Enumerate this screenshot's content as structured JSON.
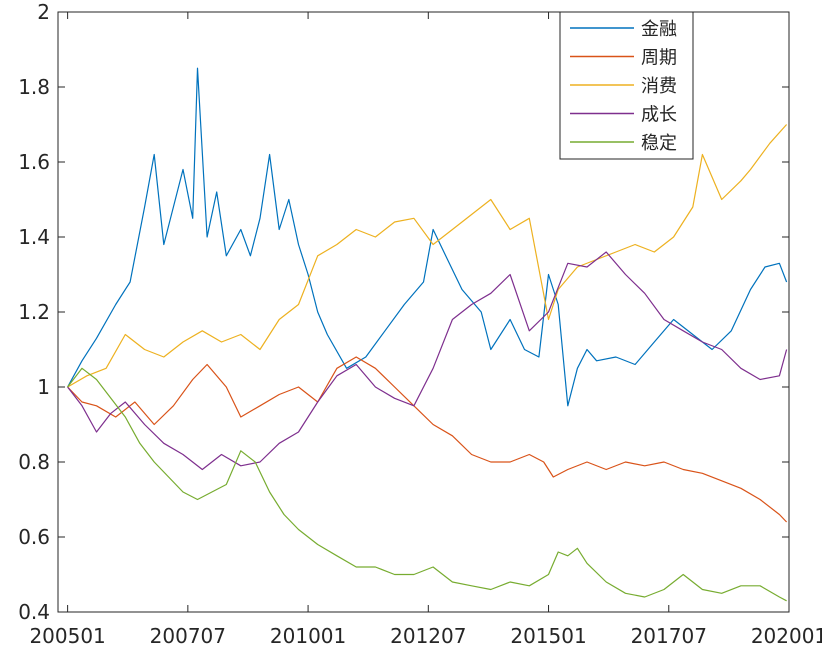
{
  "chart_data": {
    "type": "line",
    "title": "",
    "xlabel": "",
    "ylabel": "",
    "x_ticks": [
      "200501",
      "200707",
      "201001",
      "201207",
      "201501",
      "201707",
      "202001"
    ],
    "x_tick_positions": [
      0,
      2.5,
      5,
      7.5,
      10,
      12.5,
      15
    ],
    "xlim": [
      -0.2,
      15
    ],
    "ylim": [
      0.4,
      2.0
    ],
    "y_ticks": [
      "0.4",
      "0.6",
      "0.8",
      "1",
      "1.2",
      "1.4",
      "1.6",
      "1.8",
      "2"
    ],
    "y_tick_values": [
      0.4,
      0.6,
      0.8,
      1.0,
      1.2,
      1.4,
      1.6,
      1.8,
      2.0
    ],
    "grid": false,
    "legend_position": "top-right",
    "series": [
      {
        "name": "金融",
        "color": "#0072BD",
        "x": [
          0,
          0.3,
          0.6,
          1.0,
          1.3,
          1.6,
          1.8,
          2.0,
          2.2,
          2.4,
          2.6,
          2.7,
          2.9,
          3.1,
          3.3,
          3.6,
          3.8,
          4.0,
          4.2,
          4.4,
          4.6,
          4.8,
          5.0,
          5.2,
          5.4,
          5.8,
          6.2,
          6.6,
          7.0,
          7.4,
          7.6,
          7.9,
          8.2,
          8.6,
          8.8,
          9.2,
          9.5,
          9.8,
          10.0,
          10.2,
          10.4,
          10.6,
          10.8,
          11.0,
          11.4,
          11.8,
          12.2,
          12.6,
          13.0,
          13.4,
          13.8,
          14.2,
          14.5,
          14.8,
          14.95
        ],
        "y": [
          1.0,
          1.07,
          1.13,
          1.22,
          1.28,
          1.48,
          1.62,
          1.38,
          1.48,
          1.58,
          1.45,
          1.85,
          1.4,
          1.52,
          1.35,
          1.42,
          1.35,
          1.45,
          1.62,
          1.42,
          1.5,
          1.38,
          1.3,
          1.2,
          1.14,
          1.05,
          1.08,
          1.15,
          1.22,
          1.28,
          1.42,
          1.34,
          1.26,
          1.2,
          1.1,
          1.18,
          1.1,
          1.08,
          1.3,
          1.22,
          0.95,
          1.05,
          1.1,
          1.07,
          1.08,
          1.06,
          1.12,
          1.18,
          1.14,
          1.1,
          1.15,
          1.26,
          1.32,
          1.33,
          1.28
        ]
      },
      {
        "name": "周期",
        "color": "#D95319",
        "x": [
          0,
          0.3,
          0.6,
          1.0,
          1.4,
          1.8,
          2.2,
          2.6,
          2.9,
          3.3,
          3.6,
          4.0,
          4.4,
          4.8,
          5.2,
          5.6,
          6.0,
          6.4,
          6.8,
          7.2,
          7.6,
          8.0,
          8.4,
          8.8,
          9.2,
          9.6,
          9.9,
          10.1,
          10.4,
          10.8,
          11.2,
          11.6,
          12.0,
          12.4,
          12.8,
          13.2,
          13.6,
          14.0,
          14.4,
          14.8,
          14.95
        ],
        "y": [
          1.0,
          0.96,
          0.95,
          0.92,
          0.96,
          0.9,
          0.95,
          1.02,
          1.06,
          1.0,
          0.92,
          0.95,
          0.98,
          1.0,
          0.96,
          1.05,
          1.08,
          1.05,
          1.0,
          0.95,
          0.9,
          0.87,
          0.82,
          0.8,
          0.8,
          0.82,
          0.8,
          0.76,
          0.78,
          0.8,
          0.78,
          0.8,
          0.79,
          0.8,
          0.78,
          0.77,
          0.75,
          0.73,
          0.7,
          0.66,
          0.64
        ]
      },
      {
        "name": "消费",
        "color": "#EDB120",
        "x": [
          0,
          0.4,
          0.8,
          1.2,
          1.6,
          2.0,
          2.4,
          2.8,
          3.2,
          3.6,
          4.0,
          4.4,
          4.8,
          5.2,
          5.6,
          6.0,
          6.4,
          6.8,
          7.2,
          7.6,
          8.0,
          8.4,
          8.8,
          9.2,
          9.6,
          10.0,
          10.2,
          10.6,
          11.0,
          11.4,
          11.8,
          12.2,
          12.6,
          13.0,
          13.2,
          13.6,
          14.0,
          14.2,
          14.6,
          14.95
        ],
        "y": [
          1.0,
          1.03,
          1.05,
          1.14,
          1.1,
          1.08,
          1.12,
          1.15,
          1.12,
          1.14,
          1.1,
          1.18,
          1.22,
          1.35,
          1.38,
          1.42,
          1.4,
          1.44,
          1.45,
          1.38,
          1.42,
          1.46,
          1.5,
          1.42,
          1.45,
          1.18,
          1.26,
          1.32,
          1.34,
          1.36,
          1.38,
          1.36,
          1.4,
          1.48,
          1.62,
          1.5,
          1.55,
          1.58,
          1.65,
          1.7
        ]
      },
      {
        "name": "成长",
        "color": "#7E2F8E",
        "x": [
          0,
          0.3,
          0.6,
          0.9,
          1.2,
          1.6,
          2.0,
          2.4,
          2.8,
          3.2,
          3.6,
          4.0,
          4.4,
          4.8,
          5.2,
          5.6,
          6.0,
          6.4,
          6.8,
          7.2,
          7.6,
          8.0,
          8.4,
          8.8,
          9.2,
          9.6,
          10.0,
          10.4,
          10.8,
          11.2,
          11.6,
          12.0,
          12.4,
          12.8,
          13.2,
          13.6,
          14.0,
          14.4,
          14.8,
          14.95
        ],
        "y": [
          1.0,
          0.95,
          0.88,
          0.93,
          0.96,
          0.9,
          0.85,
          0.82,
          0.78,
          0.82,
          0.79,
          0.8,
          0.85,
          0.88,
          0.96,
          1.03,
          1.06,
          1.0,
          0.97,
          0.95,
          1.05,
          1.18,
          1.22,
          1.25,
          1.3,
          1.15,
          1.2,
          1.33,
          1.32,
          1.36,
          1.3,
          1.25,
          1.18,
          1.15,
          1.12,
          1.1,
          1.05,
          1.02,
          1.03,
          1.1
        ]
      },
      {
        "name": "稳定",
        "color": "#77AC30",
        "x": [
          0,
          0.3,
          0.6,
          0.9,
          1.2,
          1.5,
          1.8,
          2.1,
          2.4,
          2.7,
          3.0,
          3.3,
          3.6,
          3.9,
          4.2,
          4.5,
          4.8,
          5.2,
          5.6,
          6.0,
          6.4,
          6.8,
          7.2,
          7.6,
          8.0,
          8.4,
          8.8,
          9.2,
          9.6,
          10.0,
          10.2,
          10.4,
          10.6,
          10.8,
          11.2,
          11.6,
          12.0,
          12.4,
          12.8,
          13.2,
          13.6,
          14.0,
          14.4,
          14.8,
          14.95
        ],
        "y": [
          1.0,
          1.05,
          1.02,
          0.97,
          0.92,
          0.85,
          0.8,
          0.76,
          0.72,
          0.7,
          0.72,
          0.74,
          0.83,
          0.8,
          0.72,
          0.66,
          0.62,
          0.58,
          0.55,
          0.52,
          0.52,
          0.5,
          0.5,
          0.52,
          0.48,
          0.47,
          0.46,
          0.48,
          0.47,
          0.5,
          0.56,
          0.55,
          0.57,
          0.53,
          0.48,
          0.45,
          0.44,
          0.46,
          0.5,
          0.46,
          0.45,
          0.47,
          0.47,
          0.44,
          0.43
        ]
      }
    ]
  }
}
